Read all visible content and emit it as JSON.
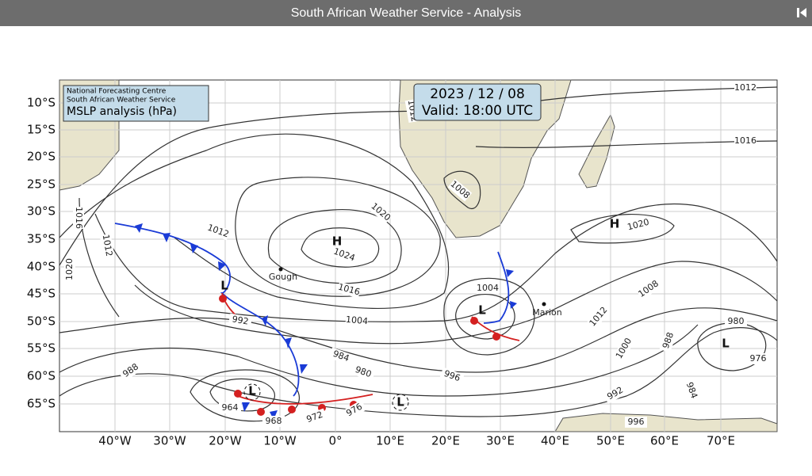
{
  "header": {
    "title": "South African Weather Service - Analysis"
  },
  "map": {
    "info_box": [
      "National Forecasting Centre",
      "South African Weather Service",
      "MSLP analysis (hPa)"
    ],
    "date_box": [
      "2023 / 12 / 08",
      "Valid: 18:00 UTC"
    ],
    "latitudes": [
      "10°S",
      "15°S",
      "20°S",
      "25°S",
      "30°S",
      "35°S",
      "40°S",
      "45°S",
      "50°S",
      "55°S",
      "60°S",
      "65°S"
    ],
    "longitudes": [
      "40°W",
      "30°W",
      "20°W",
      "10°W",
      "0°",
      "10°E",
      "20°E",
      "30°E",
      "40°E",
      "50°E",
      "60°E",
      "70°E"
    ],
    "isobar_labels": [
      "1012",
      "1016",
      "1020",
      "1024",
      "1012",
      "1016",
      "1012",
      "1020",
      "1016",
      "1004",
      "992",
      "984",
      "980",
      "988",
      "996",
      "964",
      "968",
      "972",
      "976",
      "1008",
      "1020",
      "1004",
      "1008",
      "1012",
      "1000",
      "988",
      "984",
      "980",
      "976",
      "992",
      "996",
      "1012"
    ],
    "pressure_centers": [
      "H",
      "H",
      "L",
      "L",
      "L",
      "L",
      "L"
    ],
    "places": [
      "Gough",
      "Marion"
    ]
  }
}
